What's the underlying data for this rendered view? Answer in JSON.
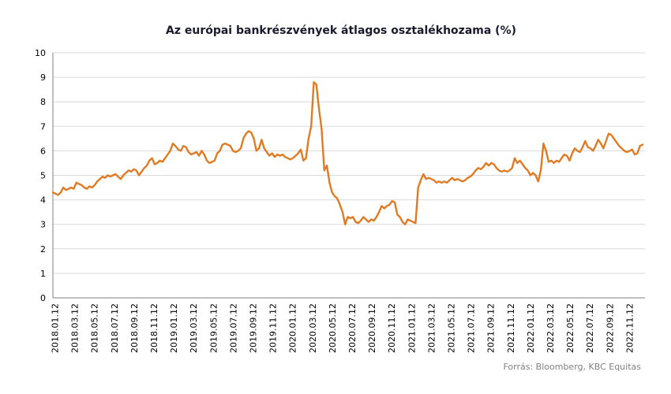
{
  "chart_data": {
    "type": "line",
    "title": "Az európai bankrészvények  átlagos osztalékhozama (%)",
    "xlabel": "",
    "ylabel": "",
    "ylim": [
      0,
      10
    ],
    "y_ticks": [
      "0",
      "1",
      "2",
      "3",
      "4",
      "5",
      "6",
      "7",
      "8",
      "9",
      "10"
    ],
    "x_tick_labels": [
      "2018.01.12",
      "2018.03.12",
      "2018.05.12",
      "2018.07.12",
      "2018.09.12",
      "2018.11.12",
      "2019.01.12",
      "2019.03.12",
      "2019.05.12",
      "2019.07.12",
      "2019.09.12",
      "2019.11.12",
      "2020.01.12",
      "2020.03.12",
      "2020.05.12",
      "2020.07.12",
      "2020.09.12",
      "2020.11.12",
      "2021.01.12",
      "2021.03.12",
      "2021.05.12",
      "2021.07.12",
      "2021.09.12",
      "2021.11.12",
      "2022.01.12",
      "2022.03.12",
      "2022.05.12",
      "2022.07.12",
      "2022.09.12",
      "2022.11.12"
    ],
    "grid": true,
    "legend": "none",
    "line_color": "#E07B24",
    "series": [
      {
        "values": [
          4.3,
          4.25,
          4.2,
          4.3,
          4.5,
          4.4,
          4.45,
          4.5,
          4.45,
          4.7,
          4.65,
          4.6,
          4.5,
          4.45,
          4.55,
          4.5,
          4.6,
          4.75,
          4.85,
          4.95,
          4.9,
          5.0,
          4.95,
          5.0,
          5.05,
          4.95,
          4.85,
          5.0,
          5.1,
          5.2,
          5.15,
          5.25,
          5.2,
          5.0,
          5.15,
          5.3,
          5.4,
          5.6,
          5.7,
          5.45,
          5.5,
          5.6,
          5.55,
          5.7,
          5.85,
          6.0,
          6.3,
          6.2,
          6.05,
          6.0,
          6.2,
          6.15,
          5.95,
          5.85,
          5.9,
          5.95,
          5.8,
          6.0,
          5.85,
          5.6,
          5.5,
          5.55,
          5.6,
          5.9,
          6.0,
          6.25,
          6.3,
          6.25,
          6.2,
          6.0,
          5.95,
          6.0,
          6.1,
          6.5,
          6.7,
          6.8,
          6.75,
          6.5,
          6.0,
          6.1,
          6.45,
          6.1,
          5.95,
          5.8,
          5.9,
          5.75,
          5.85,
          5.8,
          5.85,
          5.75,
          5.7,
          5.65,
          5.7,
          5.8,
          5.9,
          6.05,
          5.6,
          5.7,
          6.5,
          7.0,
          8.8,
          8.7,
          7.7,
          6.9,
          5.2,
          5.4,
          4.7,
          4.3,
          4.15,
          4.05,
          3.8,
          3.5,
          3.0,
          3.3,
          3.25,
          3.3,
          3.1,
          3.05,
          3.15,
          3.3,
          3.2,
          3.1,
          3.2,
          3.15,
          3.3,
          3.5,
          3.75,
          3.65,
          3.75,
          3.8,
          3.95,
          3.9,
          3.4,
          3.3,
          3.1,
          3.0,
          3.2,
          3.15,
          3.1,
          3.05,
          4.5,
          4.8,
          5.05,
          4.85,
          4.9,
          4.85,
          4.8,
          4.7,
          4.75,
          4.7,
          4.75,
          4.7,
          4.8,
          4.9,
          4.8,
          4.85,
          4.8,
          4.75,
          4.8,
          4.9,
          4.95,
          5.05,
          5.2,
          5.3,
          5.25,
          5.35,
          5.5,
          5.4,
          5.5,
          5.45,
          5.3,
          5.2,
          5.15,
          5.2,
          5.15,
          5.2,
          5.3,
          5.7,
          5.5,
          5.6,
          5.45,
          5.3,
          5.2,
          5.0,
          5.1,
          5.0,
          4.75,
          5.2,
          6.3,
          6.0,
          5.55,
          5.6,
          5.5,
          5.6,
          5.55,
          5.7,
          5.85,
          5.8,
          5.6,
          5.9,
          6.1,
          6.0,
          5.95,
          6.15,
          6.4,
          6.15,
          6.1,
          6.0,
          6.2,
          6.45,
          6.3,
          6.1,
          6.4,
          6.7,
          6.65,
          6.5,
          6.35,
          6.2,
          6.1,
          6.0,
          5.95,
          6.0,
          6.05,
          5.85,
          5.9,
          6.2,
          6.25
        ]
      }
    ],
    "source": "Forrás: Bloomberg,  KBC Equitas"
  }
}
